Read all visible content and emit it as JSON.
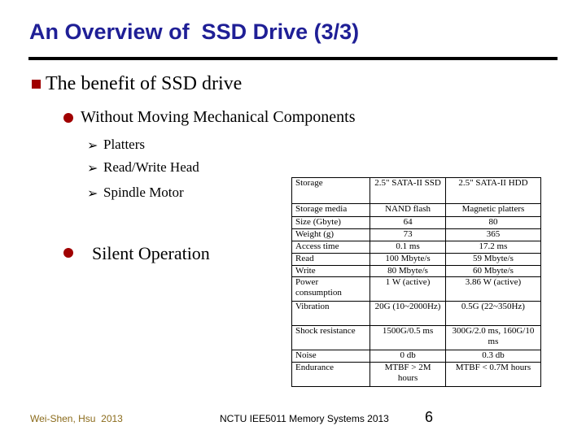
{
  "header": {
    "title": "An Overview of  SSD Drive (3/3)"
  },
  "bullets": {
    "main": "The benefit of SSD drive",
    "sub": "Without Moving Mechanical Components",
    "items": [
      "Platters",
      "Read/Write Head",
      "Spindle Motor"
    ],
    "second": "Silent Operation"
  },
  "table": {
    "rows": [
      [
        "Storage",
        "2.5\" SATA-II SSD",
        "2.5\" SATA-II HDD"
      ],
      [
        "Storage media",
        "NAND flash",
        "Magnetic platters"
      ],
      [
        "Size (Gbyte)",
        "64",
        "80"
      ],
      [
        "Weight (g)",
        "73",
        "365"
      ],
      [
        "Access time",
        "0.1 ms",
        "17.2 ms"
      ],
      [
        "Read",
        "100 Mbyte/s",
        "59 Mbyte/s"
      ],
      [
        "Write",
        "80 Mbyte/s",
        "60 Mbyte/s"
      ],
      [
        "Power consumption",
        "1 W (active)",
        "3.86 W (active)"
      ],
      [
        "Vibration",
        "20G (10~2000Hz)",
        "0.5G (22~350Hz)"
      ],
      [
        "Shock resistance",
        "1500G/0.5 ms",
        "300G/2.0 ms, 160G/10 ms"
      ],
      [
        "Noise",
        "0 db",
        "0.3 db"
      ],
      [
        "Endurance",
        "MTBF > 2M hours",
        "MTBF < 0.7M hours"
      ]
    ]
  },
  "footer": {
    "author": "Wei-Shen, Hsu  2013",
    "course": "NCTU IEE5011 Memory Systems 2013",
    "page": "6"
  }
}
